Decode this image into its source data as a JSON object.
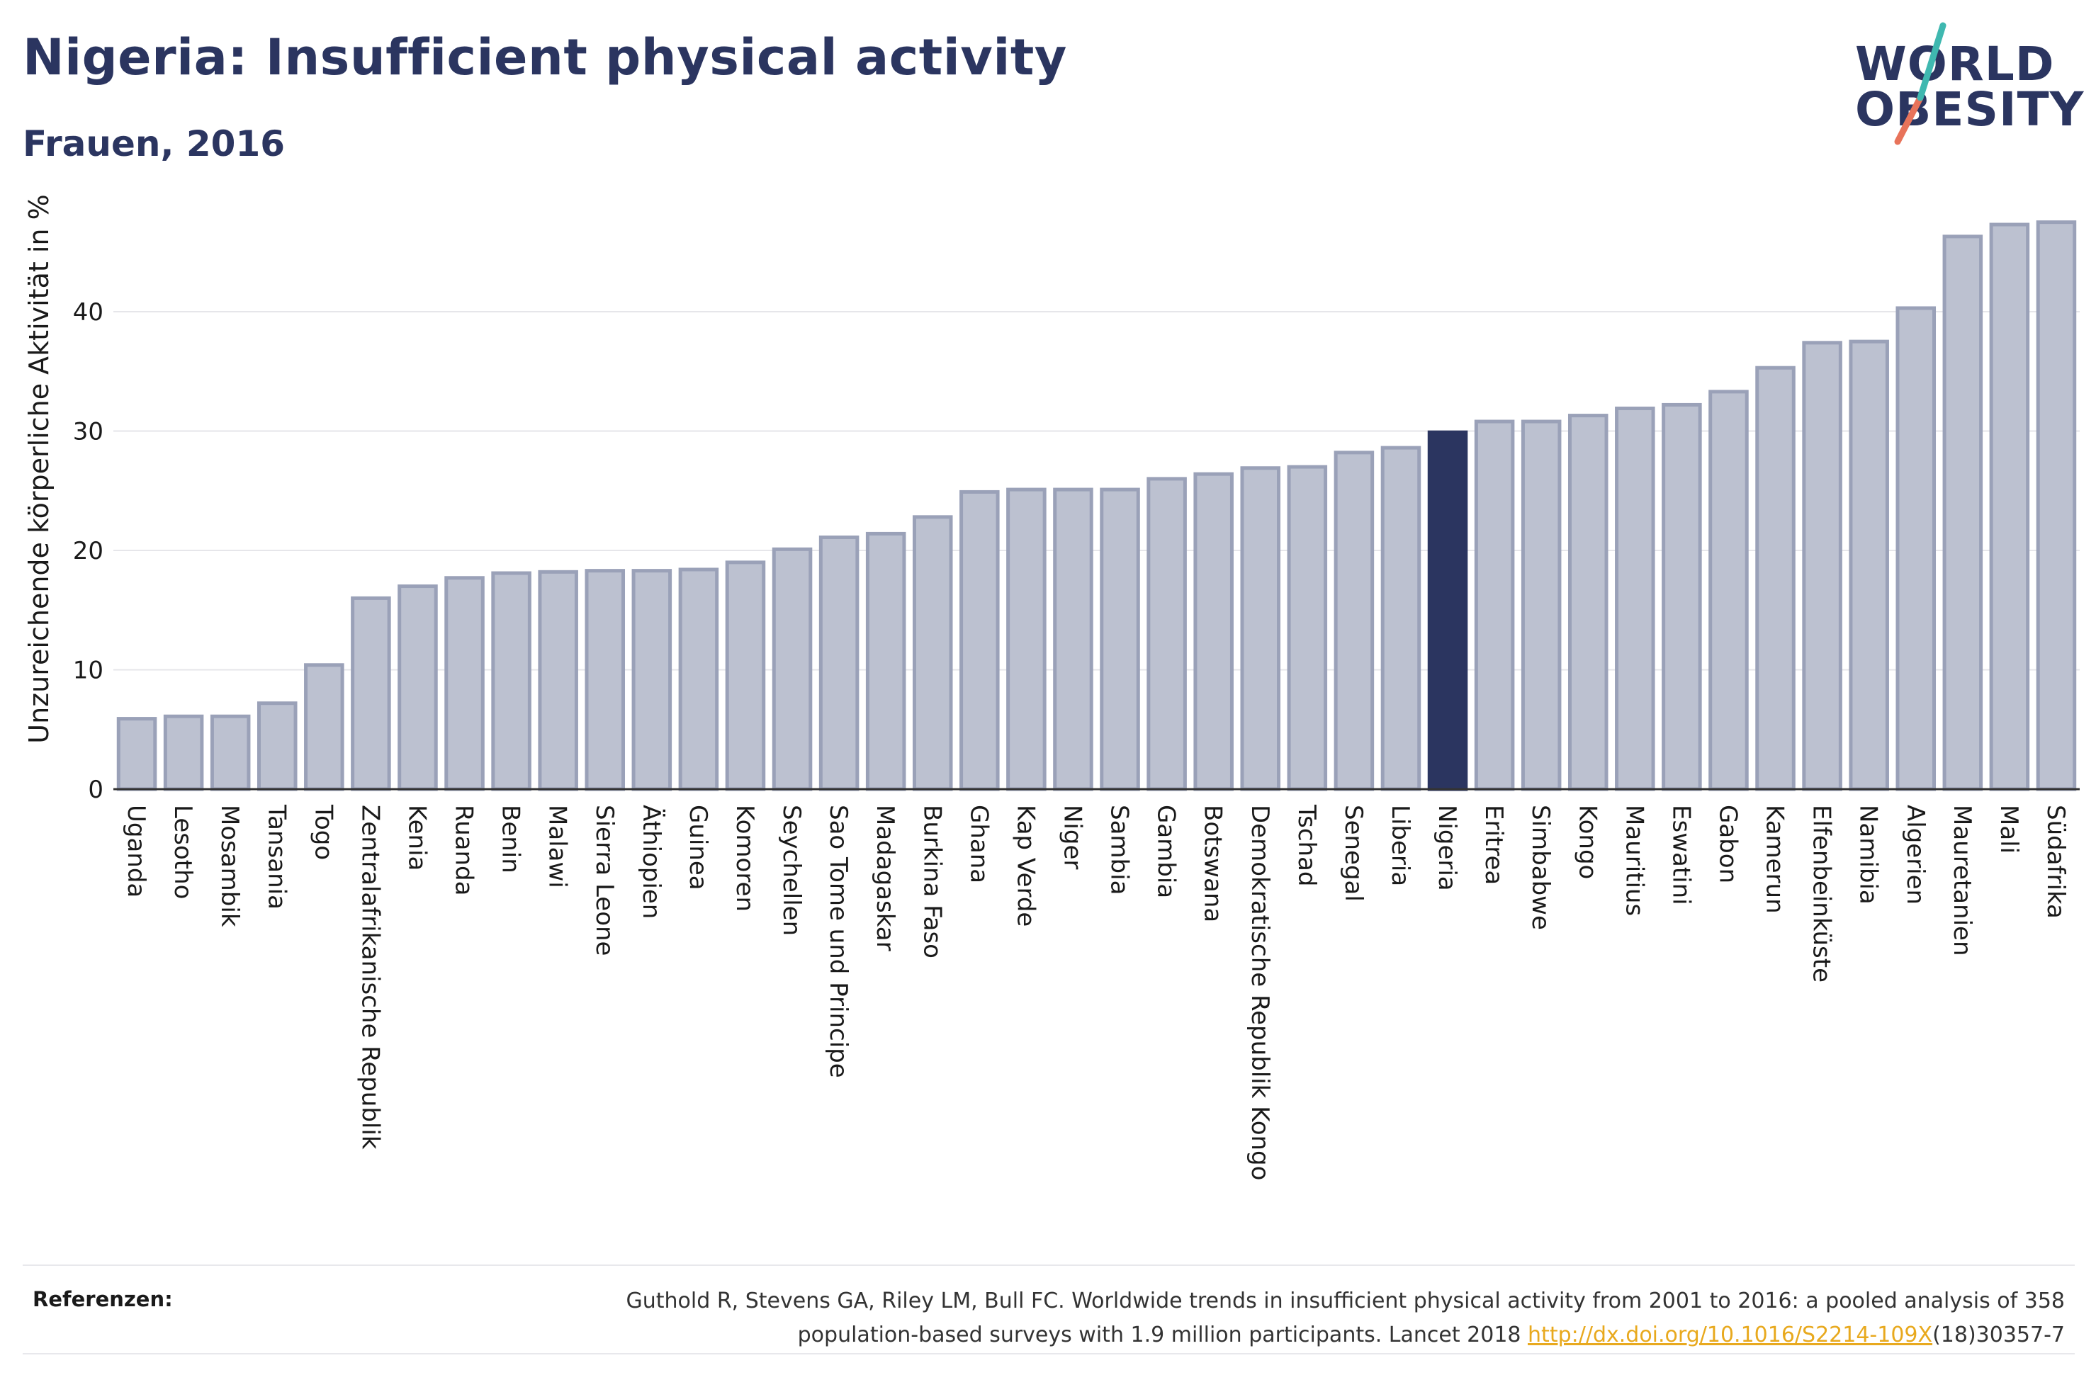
{
  "header": {
    "title": "Nigeria: Insufficient physical activity",
    "subtitle": "Frauen, 2016"
  },
  "logo": {
    "line1": "WORLD",
    "line2": "OBESITY",
    "colors": {
      "text": "#2b3560",
      "slash_teal": "#3fb8b0",
      "slash_red": "#e8735a"
    }
  },
  "chart_data": {
    "type": "bar",
    "ylabel": "Unzureichende körperliche Aktivität in %",
    "ylim": [
      0,
      50
    ],
    "yticks": [
      0,
      10,
      20,
      30,
      40
    ],
    "grid": true,
    "highlight": "Nigeria",
    "colors": {
      "bar": "#bcc1d0",
      "bar_border": "#9aa1b8",
      "highlight": "#2b3560",
      "grid": "#e6e6ea"
    },
    "categories": [
      "Uganda",
      "Lesotho",
      "Mosambik",
      "Tansania",
      "Togo",
      "Zentralafrikanische Republik",
      "Kenia",
      "Ruanda",
      "Benin",
      "Malawi",
      "Sierra Leone",
      "Äthiopien",
      "Guinea",
      "Komoren",
      "Seychellen",
      "Sao Tome und Principe",
      "Madagaskar",
      "Burkina Faso",
      "Ghana",
      "Kap Verde",
      "Niger",
      "Sambia",
      "Gambia",
      "Botswana",
      "Demokratische Republik Kongo",
      "Tschad",
      "Senegal",
      "Liberia",
      "Nigeria",
      "Eritrea",
      "Simbabwe",
      "Kongo",
      "Mauritius",
      "Eswatini",
      "Gabon",
      "Kamerun",
      "Elfenbeinküste",
      "Namibia",
      "Algerien",
      "Mauretanien",
      "Mali",
      "Südafrika"
    ],
    "values": [
      5.9,
      6.1,
      6.1,
      7.2,
      10.4,
      16.0,
      17.0,
      17.7,
      18.1,
      18.2,
      18.3,
      18.3,
      18.4,
      19.0,
      20.1,
      21.1,
      21.4,
      22.8,
      24.9,
      25.1,
      25.1,
      25.1,
      26.0,
      26.4,
      26.9,
      27.0,
      28.2,
      28.6,
      29.9,
      30.8,
      30.8,
      31.3,
      31.9,
      32.2,
      33.3,
      35.3,
      37.4,
      37.5,
      40.3,
      46.3,
      47.3,
      47.5
    ]
  },
  "references": {
    "label": "Referenzen:",
    "text_line1": "Guthold R, Stevens GA, Riley LM, Bull FC. Worldwide trends in insufficient physical activity from 2001 to 2016: a pooled analysis of 358",
    "text_line2_prefix": "population-based surveys with 1.9 million participants. Lancet 2018 ",
    "link": "http://dx.doi.org/10.1016/S2214-109X",
    "text_line2_suffix": "(18)30357-7"
  }
}
